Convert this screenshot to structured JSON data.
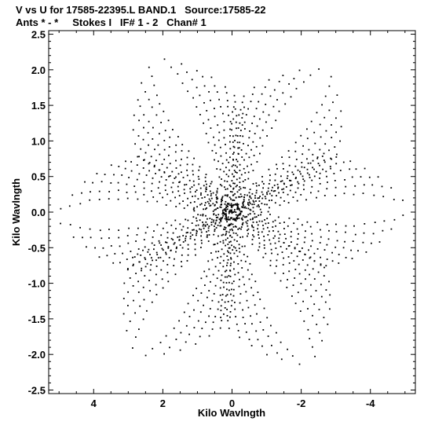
{
  "header": {
    "line1": "V vs U for 17585-22395.L BAND.1   Source:17585-22",
    "line2": "Ants * - *     Stokes I   IF# 1 - 2   Chan# 1"
  },
  "chart_data": {
    "type": "scatter",
    "title": "V vs U for 17585-22395.L BAND.1   Source:17585-22",
    "subtitle": "Ants * - *     Stokes I   IF# 1 - 2   Chan# 1",
    "xlabel": "Kilo Wavlngth",
    "ylabel": "Kilo Wavlngth",
    "xlim": [
      5.3,
      -5.3
    ],
    "ylim": [
      -2.55,
      2.55
    ],
    "x_ticks": [
      4,
      2,
      0,
      -2,
      -4
    ],
    "x_tick_labels": [
      "4",
      "2",
      "0",
      "-2",
      "-4"
    ],
    "y_ticks": [
      2.5,
      2.0,
      1.5,
      1.0,
      0.5,
      0.0,
      -0.5,
      -1.0,
      -1.5,
      -2.0,
      -2.5
    ],
    "y_tick_labels": [
      "2.5",
      "2.0",
      "1.5",
      "1.0",
      "0.5",
      "0.0",
      "-0.5",
      "-1.0",
      "-1.5",
      "-2.0",
      "-2.5"
    ],
    "grid": false,
    "marker_color": "#000000",
    "pattern": {
      "description_values": "six-armed uv coverage snowflake, arms centered near these angles in data degrees",
      "arm_angles_deg": [
        90,
        30,
        -30,
        -90,
        -150,
        150
      ],
      "arm_max_radius": 2.4,
      "arm_tip_points": [
        {
          "x": 2.5,
          "y": 2.4
        },
        {
          "x": -3.1,
          "y": 2.25
        },
        {
          "x": -5.1,
          "y": 0.05
        },
        {
          "x": -2.5,
          "y": -2.4
        },
        {
          "x": 3.1,
          "y": -2.25
        },
        {
          "x": 5.1,
          "y": -0.05
        }
      ]
    }
  }
}
